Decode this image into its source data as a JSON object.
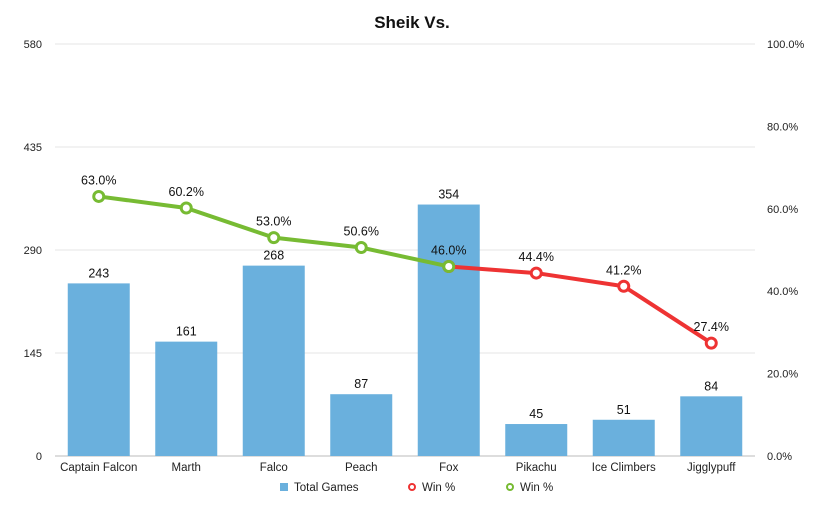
{
  "chart_data": {
    "type": "bar",
    "title": "Sheik Vs.",
    "categories": [
      "Captain Falcon",
      "Marth",
      "Falco",
      "Peach",
      "Fox",
      "Pikachu",
      "Ice Climbers",
      "Jigglypuff"
    ],
    "bar_series": {
      "name": "Total Games",
      "values": [
        243,
        161,
        268,
        87,
        354,
        45,
        51,
        84
      ],
      "labels": [
        "243",
        "161",
        "268",
        "87",
        "354",
        "45",
        "51",
        "84"
      ],
      "color": "#6ab0dd"
    },
    "line_series": [
      {
        "name": "Win %",
        "color": "#ee3333",
        "category_indices": [
          4,
          5,
          6,
          7
        ],
        "values": [
          46.0,
          44.4,
          41.2,
          27.4
        ],
        "labels": [
          "46.0%",
          "44.4%",
          "41.2%",
          "27.4%"
        ]
      },
      {
        "name": "Win %",
        "color": "#77bb33",
        "category_indices": [
          0,
          1,
          2,
          3,
          4
        ],
        "values": [
          63.0,
          60.2,
          53.0,
          50.6,
          46.0
        ],
        "labels": [
          "63.0%",
          "60.2%",
          "53.0%",
          "50.6%",
          ""
        ]
      }
    ],
    "y_left": {
      "min": 0,
      "max": 580,
      "ticks": [
        "0",
        "145",
        "290",
        "435",
        "580"
      ]
    },
    "y_right": {
      "min": 0,
      "max": 100,
      "ticks": [
        "0.0%",
        "20.0%",
        "40.0%",
        "60.0%",
        "80.0%",
        "100.0%"
      ]
    },
    "grid": true,
    "legend_position": "bottom"
  }
}
